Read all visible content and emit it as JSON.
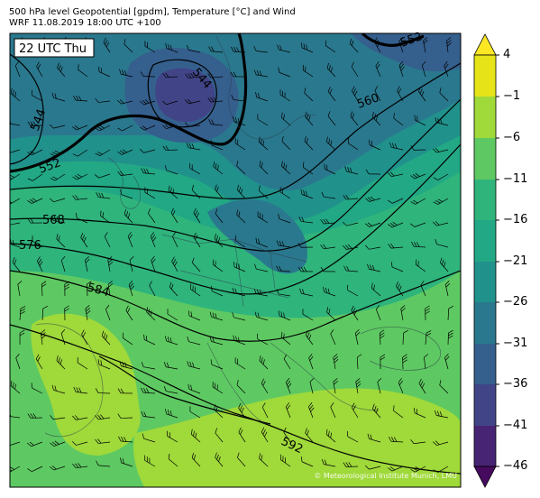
{
  "title": {
    "line1": "500 hPa level Geopotential [gpdm], Temperature [°C] and Wind",
    "line2": "WRF 11.08.2019 18:00 UTC +100"
  },
  "time_label": "22 UTC Thu",
  "contour_labels": [
    "544",
    "544",
    "552",
    "552",
    "560",
    "568",
    "576",
    "584",
    "592"
  ],
  "colorbar": {
    "ticks": [
      "4",
      "−1",
      "−6",
      "−11",
      "−16",
      "−21",
      "−26",
      "−31",
      "−36",
      "−41",
      "−46"
    ],
    "colors": {
      "c46": "#460b5e",
      "c41": "#482475",
      "c36": "#414487",
      "c31": "#355f8d",
      "c26": "#2a788e",
      "c21": "#21918c",
      "c16": "#22a884",
      "c11": "#2fb47c",
      "c6": "#5ec962",
      "c1": "#9fd93a",
      "c4": "#e6e419",
      "above": "#fde725"
    }
  },
  "copyright": "© Meteorological Institute Munich, LMU"
}
